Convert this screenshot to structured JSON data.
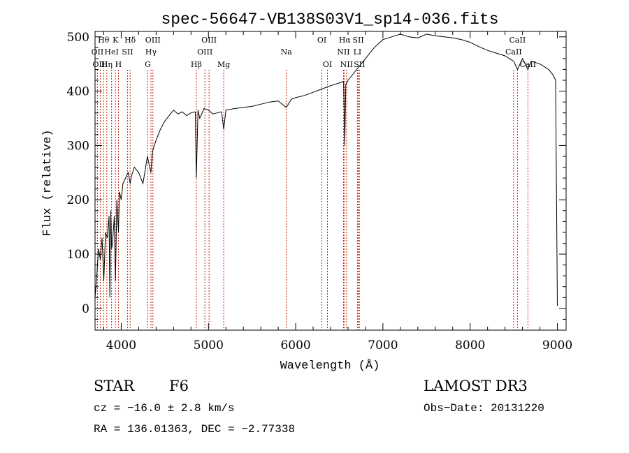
{
  "chart_data": {
    "type": "line",
    "title": "spec-56647-VB138S03V1_sp14-036.fits",
    "xlabel": "Wavelength (Å)",
    "ylabel": "Flux (relative)",
    "xlim": [
      3700,
      9100
    ],
    "ylim": [
      -40,
      510
    ],
    "xticks": [
      4000,
      5000,
      6000,
      7000,
      8000,
      9000
    ],
    "xtick_labels": [
      "4000",
      "5000",
      "6000",
      "7000",
      "8000",
      "9000"
    ],
    "yticks": [
      0,
      100,
      200,
      300,
      400,
      500
    ],
    "ytick_labels": [
      "0",
      "100",
      "200",
      "300",
      "400",
      "500"
    ],
    "grid": false,
    "series": [
      {
        "name": "flux",
        "x": [
          3700,
          3720,
          3740,
          3760,
          3780,
          3800,
          3820,
          3840,
          3860,
          3870,
          3880,
          3890,
          3900,
          3920,
          3934,
          3950,
          3968,
          3980,
          4000,
          4020,
          4050,
          4080,
          4102,
          4120,
          4150,
          4200,
          4250,
          4300,
          4340,
          4360,
          4400,
          4450,
          4500,
          4550,
          4600,
          4650,
          4700,
          4750,
          4800,
          4850,
          4861,
          4880,
          4900,
          4950,
          5000,
          5050,
          5100,
          5150,
          5175,
          5200,
          5300,
          5400,
          5500,
          5600,
          5700,
          5800,
          5893,
          5950,
          6000,
          6100,
          6200,
          6300,
          6400,
          6500,
          6550,
          6563,
          6575,
          6600,
          6700,
          6800,
          6900,
          7000,
          7100,
          7200,
          7300,
          7400,
          7500,
          7600,
          7700,
          7800,
          7900,
          8000,
          8100,
          8200,
          8300,
          8400,
          8500,
          8542,
          8600,
          8662,
          8700,
          8800,
          8900,
          8950,
          8980,
          9000
        ],
        "values": [
          20,
          60,
          110,
          90,
          130,
          50,
          140,
          130,
          170,
          20,
          180,
          110,
          120,
          170,
          50,
          200,
          140,
          215,
          200,
          230,
          240,
          250,
          230,
          245,
          260,
          250,
          230,
          280,
          250,
          290,
          310,
          330,
          345,
          355,
          365,
          358,
          362,
          355,
          360,
          362,
          240,
          365,
          350,
          368,
          365,
          358,
          360,
          362,
          330,
          365,
          368,
          370,
          372,
          376,
          380,
          382,
          370,
          385,
          388,
          392,
          398,
          404,
          410,
          415,
          418,
          300,
          412,
          420,
          440,
          460,
          480,
          495,
          500,
          505,
          500,
          498,
          505,
          502,
          500,
          498,
          495,
          490,
          482,
          475,
          470,
          465,
          455,
          440,
          460,
          440,
          455,
          450,
          440,
          430,
          420,
          5
        ]
      }
    ],
    "lines": [
      {
        "label": "Hθ",
        "x": 3798,
        "row": 1
      },
      {
        "label": "OII",
        "x": 3727,
        "row": 2
      },
      {
        "label": "OIII",
        "x": 3760,
        "row": 3
      },
      {
        "label": "K",
        "x": 3934,
        "row": 1
      },
      {
        "label": "HeI",
        "x": 3889,
        "row": 2
      },
      {
        "label": "Hη",
        "x": 3835,
        "row": 3
      },
      {
        "label": "Hδ",
        "x": 4102,
        "row": 1
      },
      {
        "label": "SII",
        "x": 4072,
        "row": 2
      },
      {
        "label": "H",
        "x": 3968,
        "row": 3
      },
      {
        "label": "OIII",
        "x": 4363,
        "row": 1
      },
      {
        "label": "Hγ",
        "x": 4341,
        "row": 2
      },
      {
        "label": "G",
        "x": 4305,
        "row": 3
      },
      {
        "label": "OIII",
        "x": 5007,
        "row": 1
      },
      {
        "label": "OIII",
        "x": 4959,
        "row": 2
      },
      {
        "label": "Hβ",
        "x": 4861,
        "row": 3
      },
      {
        "label": "Mg",
        "x": 5175,
        "row": 3
      },
      {
        "label": "Na",
        "x": 5893,
        "row": 2
      },
      {
        "label": "OI",
        "x": 6300,
        "row": 1
      },
      {
        "label": "OI",
        "x": 6364,
        "row": 3
      },
      {
        "label": "Hα",
        "x": 6563,
        "row": 1
      },
      {
        "label": "NII",
        "x": 6548,
        "row": 2
      },
      {
        "label": "NII",
        "x": 6584,
        "row": 3
      },
      {
        "label": "SII",
        "x": 6717,
        "row": 1
      },
      {
        "label": "LI",
        "x": 6708,
        "row": 2
      },
      {
        "label": "SII",
        "x": 6731,
        "row": 3
      },
      {
        "label": "CaII",
        "x": 8542,
        "row": 1
      },
      {
        "label": "CaII",
        "x": 8498,
        "row": 2
      },
      {
        "label": "CaII",
        "x": 8662,
        "row": 3
      }
    ]
  },
  "info": {
    "class_label": "STAR",
    "subclass": "F6",
    "survey": "LAMOST DR3",
    "cz": "cz = −16.0 ± 2.8 km/s",
    "obs_date": "Obs−Date: 20131220",
    "coords": "RA = 136.01363, DEC =  −2.77338"
  }
}
